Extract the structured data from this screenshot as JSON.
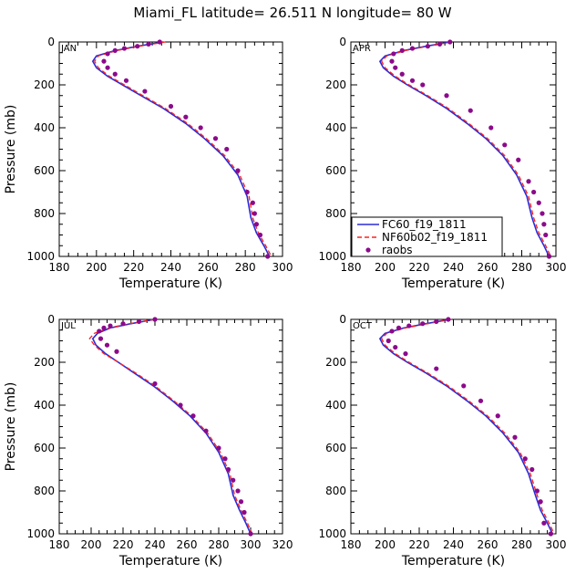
{
  "figure": {
    "title": "Miami_FL  latitude= 26.511 N longitude= 80 W",
    "xlabel": "Temperature (K)",
    "ylabel": "Pressure (mb)"
  },
  "legend": {
    "entries": [
      {
        "name": "FC60_f19_1811",
        "style": "solid",
        "color": "#2b2bd6"
      },
      {
        "name": "NF60b02_f19_1811",
        "style": "dashed",
        "color": "#ff2020"
      },
      {
        "name": "raobs",
        "style": "marker",
        "color": "#8b0a8b"
      }
    ]
  },
  "chart_data": [
    {
      "type": "line",
      "panel": "JAN",
      "xlabel": "Temperature (K)",
      "ylabel": "Pressure (mb)",
      "xlim": [
        180,
        300
      ],
      "ylim": [
        1000,
        0
      ],
      "xticks": [
        180,
        200,
        220,
        240,
        260,
        280,
        300
      ],
      "yticks": [
        0,
        200,
        400,
        600,
        800,
        1000
      ],
      "series": [
        {
          "name": "FC60_f19_1811",
          "style": "solid",
          "color": "#2b2bd6",
          "x": [
            236,
            222,
            210,
            200,
            198,
            200,
            206,
            214,
            224,
            236,
            248,
            258,
            268,
            276,
            281,
            283,
            286,
            290,
            293
          ],
          "y": [
            0,
            20,
            40,
            65,
            90,
            120,
            160,
            200,
            250,
            310,
            380,
            450,
            530,
            620,
            720,
            820,
            890,
            950,
            1000
          ]
        },
        {
          "name": "NF60b02_f19_1811",
          "style": "dashed",
          "color": "#ff2020",
          "x": [
            237,
            223,
            211,
            201,
            199,
            201,
            207,
            215,
            225,
            237,
            249,
            259,
            269,
            277,
            282,
            284,
            287,
            291,
            294
          ],
          "y": [
            0,
            20,
            40,
            65,
            90,
            120,
            160,
            200,
            250,
            310,
            380,
            450,
            530,
            620,
            720,
            820,
            890,
            950,
            1000
          ]
        },
        {
          "name": "raobs",
          "style": "marker",
          "color": "#8b0a8b",
          "x": [
            234,
            228,
            222,
            215,
            210,
            206,
            204,
            206,
            210,
            216,
            226,
            240,
            248,
            256,
            264,
            270,
            276,
            281,
            284,
            285,
            286,
            288,
            292
          ],
          "y": [
            0,
            10,
            20,
            30,
            40,
            55,
            90,
            120,
            150,
            180,
            230,
            300,
            350,
            400,
            450,
            500,
            600,
            700,
            750,
            800,
            850,
            900,
            1000
          ]
        }
      ]
    },
    {
      "type": "line",
      "panel": "APR",
      "xlabel": "Temperature (K)",
      "ylabel": "Pressure (mb)",
      "xlim": [
        180,
        300
      ],
      "ylim": [
        1000,
        0
      ],
      "xticks": [
        180,
        200,
        220,
        240,
        260,
        280,
        300
      ],
      "yticks": [
        0,
        200,
        400,
        600,
        800,
        1000
      ],
      "series": [
        {
          "name": "FC60_f19_1811",
          "style": "solid",
          "color": "#2b2bd6",
          "x": [
            238,
            224,
            211,
            200,
            197,
            199,
            205,
            213,
            224,
            236,
            248,
            259,
            269,
            277,
            283,
            286,
            289,
            293,
            296
          ],
          "y": [
            0,
            20,
            40,
            65,
            90,
            120,
            160,
            200,
            250,
            310,
            380,
            450,
            530,
            620,
            720,
            820,
            890,
            950,
            1000
          ]
        },
        {
          "name": "NF60b02_f19_1811",
          "style": "dashed",
          "color": "#ff2020",
          "x": [
            239,
            225,
            212,
            201,
            198,
            200,
            206,
            214,
            225,
            237,
            249,
            260,
            270,
            278,
            284,
            287,
            290,
            294,
            297
          ],
          "y": [
            0,
            20,
            40,
            65,
            90,
            120,
            160,
            200,
            250,
            310,
            380,
            450,
            530,
            620,
            720,
            820,
            890,
            950,
            1000
          ]
        },
        {
          "name": "raobs",
          "style": "marker",
          "color": "#8b0a8b",
          "x": [
            238,
            232,
            225,
            216,
            210,
            205,
            204,
            206,
            210,
            216,
            222,
            236,
            250,
            262,
            270,
            278,
            284,
            287,
            290,
            292,
            293,
            294,
            296
          ],
          "y": [
            0,
            10,
            20,
            30,
            40,
            55,
            90,
            120,
            150,
            180,
            200,
            250,
            320,
            400,
            480,
            550,
            650,
            700,
            750,
            800,
            850,
            900,
            1000
          ]
        }
      ]
    },
    {
      "type": "line",
      "panel": "JUL",
      "xlabel": "Temperature (K)",
      "ylabel": "Pressure (mb)",
      "xlim": [
        180,
        320
      ],
      "ylim": [
        1000,
        0
      ],
      "xticks": [
        180,
        200,
        220,
        240,
        260,
        280,
        300,
        320
      ],
      "yticks": [
        0,
        200,
        400,
        600,
        800,
        1000
      ],
      "series": [
        {
          "name": "FC60_f19_1811",
          "style": "solid",
          "color": "#2b2bd6",
          "x": [
            240,
            225,
            212,
            204,
            201,
            203,
            209,
            217,
            227,
            239,
            251,
            262,
            272,
            280,
            286,
            289,
            293,
            297,
            300
          ],
          "y": [
            0,
            20,
            40,
            65,
            90,
            120,
            160,
            200,
            250,
            310,
            380,
            450,
            530,
            620,
            720,
            820,
            890,
            950,
            1000
          ]
        },
        {
          "name": "NF60b02_f19_1811",
          "style": "dashed",
          "color": "#ff2020",
          "x": [
            240,
            224,
            211,
            202,
            199,
            202,
            208,
            217,
            228,
            240,
            252,
            263,
            273,
            281,
            287,
            290,
            294,
            298,
            301
          ],
          "y": [
            0,
            20,
            40,
            65,
            90,
            120,
            160,
            200,
            250,
            310,
            380,
            450,
            530,
            620,
            720,
            820,
            890,
            950,
            1000
          ]
        },
        {
          "name": "raobs",
          "style": "marker",
          "color": "#8b0a8b",
          "x": [
            240,
            230,
            220,
            212,
            208,
            205,
            206,
            210,
            216,
            240,
            256,
            264,
            272,
            280,
            284,
            286,
            289,
            292,
            294,
            296,
            300
          ],
          "y": [
            0,
            10,
            20,
            30,
            40,
            55,
            90,
            120,
            150,
            300,
            400,
            450,
            520,
            600,
            650,
            700,
            750,
            800,
            850,
            900,
            1000
          ]
        }
      ]
    },
    {
      "type": "line",
      "panel": "OCT",
      "xlabel": "Temperature (K)",
      "ylabel": "Pressure (mb)",
      "xlim": [
        180,
        300
      ],
      "ylim": [
        1000,
        0
      ],
      "xticks": [
        180,
        200,
        220,
        240,
        260,
        280,
        300
      ],
      "yticks": [
        0,
        200,
        400,
        600,
        800,
        1000
      ],
      "series": [
        {
          "name": "FC60_f19_1811",
          "style": "solid",
          "color": "#2b2bd6",
          "x": [
            238,
            224,
            211,
            200,
            197,
            199,
            205,
            213,
            224,
            236,
            248,
            259,
            269,
            278,
            284,
            288,
            291,
            295,
            298
          ],
          "y": [
            0,
            20,
            40,
            65,
            90,
            120,
            160,
            200,
            250,
            310,
            380,
            450,
            530,
            620,
            720,
            820,
            890,
            950,
            1000
          ]
        },
        {
          "name": "NF60b02_f19_1811",
          "style": "dashed",
          "color": "#ff2020",
          "x": [
            239,
            225,
            212,
            201,
            198,
            200,
            206,
            214,
            225,
            237,
            249,
            260,
            270,
            279,
            285,
            289,
            292,
            296,
            299
          ],
          "y": [
            0,
            20,
            40,
            65,
            90,
            120,
            160,
            200,
            250,
            310,
            380,
            450,
            530,
            620,
            720,
            820,
            890,
            950,
            1000
          ]
        },
        {
          "name": "raobs",
          "style": "marker",
          "color": "#8b0a8b",
          "x": [
            237,
            230,
            222,
            214,
            208,
            204,
            202,
            206,
            212,
            230,
            246,
            256,
            266,
            276,
            282,
            286,
            289,
            291,
            293,
            297
          ],
          "y": [
            0,
            10,
            20,
            30,
            40,
            55,
            100,
            130,
            160,
            230,
            310,
            380,
            450,
            550,
            650,
            700,
            800,
            850,
            950,
            1000
          ]
        }
      ]
    }
  ]
}
